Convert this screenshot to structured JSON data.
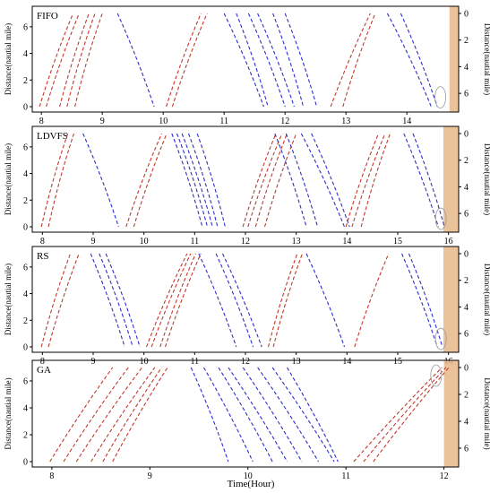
{
  "figure": {
    "x_axis_label": "Time(Hour)",
    "left_axis_label": "Distance(nautial mile)",
    "right_axis_label": "Distance(nautial mile)"
  },
  "colors": {
    "red_series": "#c0392b",
    "blue_series": "#2b2fc9",
    "band": "#e8b98a",
    "ellipse": "#9a9a9a"
  },
  "chart_data": [
    {
      "type": "line",
      "title": "FIFO",
      "xlim": [
        7.85,
        14.85
      ],
      "ylim": [
        0,
        7
      ],
      "x_ticks": [
        8,
        9,
        10,
        11,
        12,
        13,
        14
      ],
      "y_ticks_left": [
        0,
        2,
        4,
        6
      ],
      "y_ticks_right": [
        0,
        2,
        4,
        6
      ],
      "band_x": [
        14.7,
        14.85
      ],
      "ellipse": {
        "x": 14.55,
        "y": 0.7
      },
      "series": [
        {
          "color": "red",
          "segments": [
            [
              7.97,
              8.52
            ],
            [
              8.08,
              8.62
            ],
            [
              8.3,
              8.78
            ],
            [
              8.42,
              8.88
            ],
            [
              8.55,
              9.0
            ],
            [
              10.05,
              10.62
            ],
            [
              10.15,
              10.72
            ],
            [
              12.75,
              13.4
            ],
            [
              12.95,
              13.48
            ]
          ]
        },
        {
          "color": "blue",
          "segments": [
            [
              9.25,
              9.85
            ],
            [
              11.0,
              11.65
            ],
            [
              11.2,
              11.72
            ],
            [
              11.4,
              12.0
            ],
            [
              11.55,
              12.15
            ],
            [
              11.8,
              12.3
            ],
            [
              12.0,
              12.52
            ],
            [
              13.68,
              14.4
            ],
            [
              13.9,
              14.5
            ]
          ]
        }
      ]
    },
    {
      "type": "line",
      "title": "LDVFS",
      "xlim": [
        7.8,
        16.2
      ],
      "ylim": [
        0,
        7
      ],
      "x_ticks": [
        8,
        9,
        10,
        11,
        12,
        13,
        14,
        15,
        16
      ],
      "y_ticks_left": [
        0,
        2,
        4,
        6
      ],
      "y_ticks_right": [
        0,
        2,
        4,
        6
      ],
      "band_x": [
        15.9,
        16.2
      ],
      "ellipse": {
        "x": 15.85,
        "y": 0.6
      },
      "series": [
        {
          "color": "red",
          "segments": [
            [
              7.98,
              8.5
            ],
            [
              8.12,
              8.62
            ],
            [
              9.65,
              10.35
            ],
            [
              9.8,
              10.45
            ],
            [
              11.95,
              12.6
            ],
            [
              12.05,
              12.72
            ],
            [
              12.2,
              12.82
            ],
            [
              12.38,
              13.0
            ],
            [
              13.98,
              14.62
            ],
            [
              14.1,
              14.75
            ],
            [
              14.28,
              14.85
            ]
          ]
        },
        {
          "color": "blue",
          "segments": [
            [
              8.8,
              9.5
            ],
            [
              10.55,
              11.15
            ],
            [
              10.65,
              11.25
            ],
            [
              10.75,
              11.35
            ],
            [
              10.88,
              11.45
            ],
            [
              11.05,
              11.6
            ],
            [
              12.58,
              13.2
            ],
            [
              12.8,
              13.42
            ],
            [
              13.1,
              13.95
            ],
            [
              13.3,
              14.05
            ],
            [
              15.12,
              15.8
            ],
            [
              15.3,
              15.92
            ]
          ]
        }
      ]
    },
    {
      "type": "line",
      "title": "RS",
      "xlim": [
        7.8,
        16.2
      ],
      "ylim": [
        0,
        7
      ],
      "x_ticks": [
        8,
        9,
        10,
        11,
        12,
        13,
        14,
        15,
        16
      ],
      "y_ticks_left": [
        0,
        2,
        4,
        6
      ],
      "y_ticks_right": [
        0,
        2,
        4,
        6
      ],
      "band_x": [
        15.9,
        16.2
      ],
      "ellipse": {
        "x": 15.85,
        "y": 0.6
      },
      "series": [
        {
          "color": "red",
          "segments": [
            [
              7.98,
              8.55
            ],
            [
              8.12,
              8.72
            ],
            [
              10.05,
              10.85
            ],
            [
              10.15,
              10.92
            ],
            [
              10.32,
              11.02
            ],
            [
              10.42,
              11.12
            ],
            [
              12.45,
              13.02
            ],
            [
              12.55,
              13.12
            ],
            [
              14.15,
              14.82
            ]
          ]
        },
        {
          "color": "blue",
          "segments": [
            [
              8.95,
              9.62
            ],
            [
              9.12,
              9.78
            ],
            [
              9.25,
              9.92
            ],
            [
              11.08,
              11.82
            ],
            [
              11.42,
              12.15
            ],
            [
              11.55,
              12.32
            ],
            [
              13.2,
              13.95
            ],
            [
              15.08,
              15.78
            ],
            [
              15.22,
              15.88
            ]
          ]
        }
      ]
    },
    {
      "type": "line",
      "title": "GA",
      "xlim": [
        7.8,
        12.15
      ],
      "ylim": [
        0,
        7
      ],
      "x_ticks": [
        8,
        9,
        10,
        11,
        12
      ],
      "y_ticks_left": [
        0,
        2,
        4,
        6
      ],
      "y_ticks_right": [
        0,
        2,
        4,
        6
      ],
      "band_x": [
        12.0,
        12.15
      ],
      "ellipse": {
        "x": 11.92,
        "y": 6.4
      },
      "series": [
        {
          "color": "red",
          "segments": [
            [
              7.98,
              8.62
            ],
            [
              8.12,
              8.78
            ],
            [
              8.25,
              8.92
            ],
            [
              8.4,
              9.05
            ],
            [
              8.52,
              9.12
            ],
            [
              8.62,
              9.18
            ],
            [
              11.08,
              11.98
            ],
            [
              11.18,
              12.02
            ],
            [
              11.28,
              12.05
            ]
          ]
        },
        {
          "color": "blue",
          "segments": [
            [
              9.42,
              9.8
            ],
            [
              9.55,
              10.05
            ],
            [
              9.7,
              10.25
            ],
            [
              9.8,
              10.4
            ],
            [
              9.95,
              10.55
            ],
            [
              10.1,
              10.72
            ],
            [
              10.25,
              10.88
            ],
            [
              10.4,
              10.92
            ]
          ]
        }
      ]
    }
  ]
}
